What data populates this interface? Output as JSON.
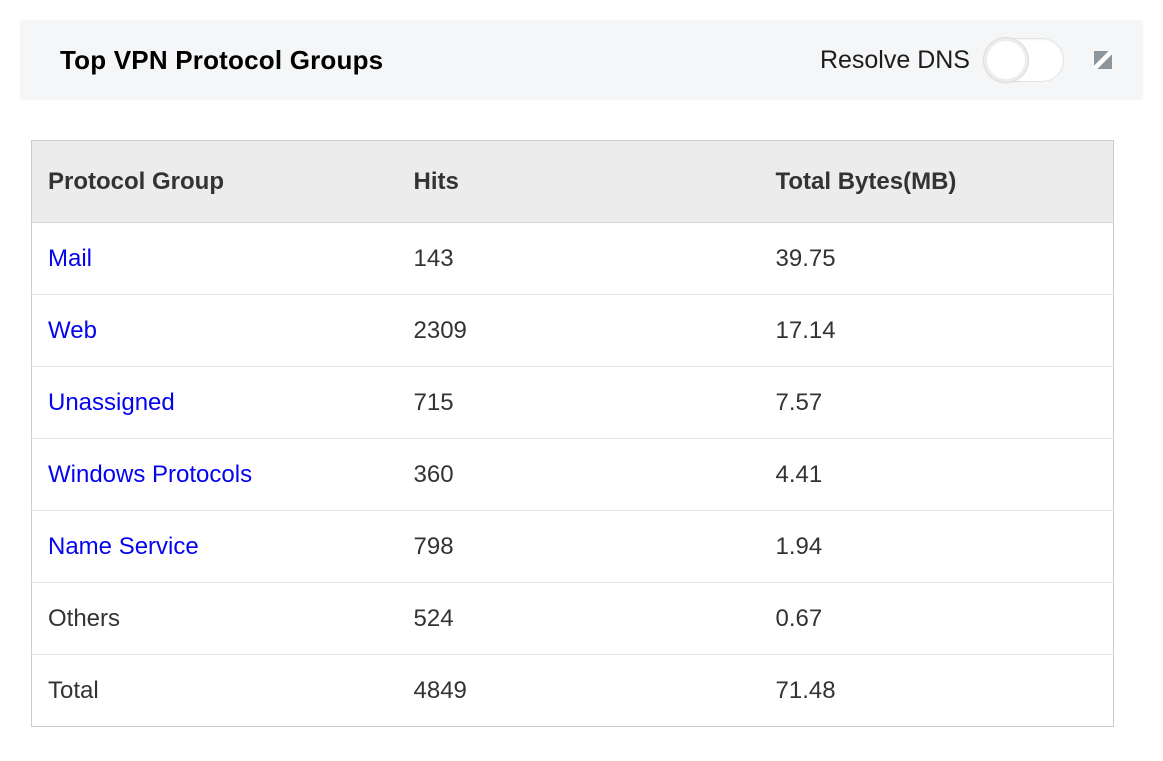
{
  "widget": {
    "title": "Top VPN Protocol Groups",
    "resolve_dns_label": "Resolve DNS",
    "toggle_state": "off",
    "expand_icon_name": "diagonal-split-square"
  },
  "table": {
    "columns": {
      "protocol_group": "Protocol Group",
      "hits": "Hits",
      "total_bytes": "Total Bytes(MB)"
    },
    "rows": [
      {
        "protocol_group": "Mail",
        "hits": "143",
        "total_bytes": "39.75"
      },
      {
        "protocol_group": "Web",
        "hits": "2309",
        "total_bytes": "17.14"
      },
      {
        "protocol_group": "Unassigned",
        "hits": "715",
        "total_bytes": "7.57"
      },
      {
        "protocol_group": "Windows Protocols",
        "hits": "360",
        "total_bytes": "4.41"
      },
      {
        "protocol_group": "Name Service",
        "hits": "798",
        "total_bytes": "1.94"
      },
      {
        "protocol_group": "Others",
        "hits": "524",
        "total_bytes": "0.67"
      },
      {
        "protocol_group": "Total",
        "hits": "4849",
        "total_bytes": "71.48"
      }
    ]
  },
  "colors": {
    "link_blue": "#0404ee",
    "table_header_bg": "#ececec",
    "widget_header_bg": "#f5f6f7",
    "table_border": "#cccccc",
    "row_divider": "#e4e4e4",
    "text_dark": "#333333"
  }
}
